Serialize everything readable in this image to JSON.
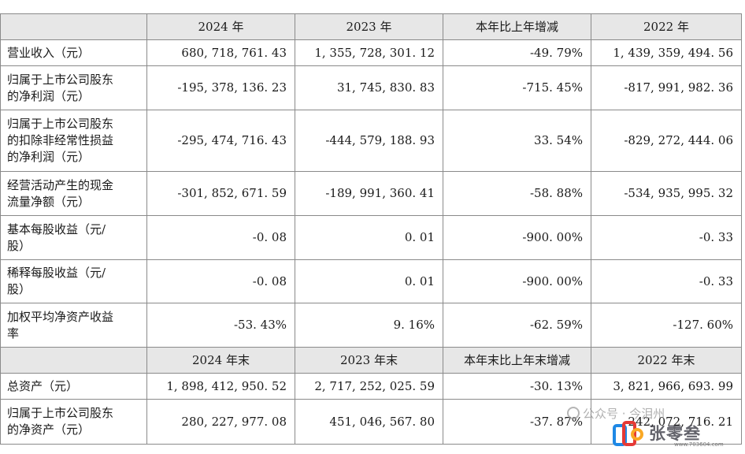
{
  "header1": [
    "",
    "2024 年",
    "2023 年",
    "本年比上年增减",
    "2022 年"
  ],
  "rows1": [
    {
      "label": [
        "营业收入（元）"
      ],
      "values": [
        "680, 718, 761. 43",
        "1, 355, 728, 301. 12",
        "-49. 79%",
        "1, 439, 359, 494. 56"
      ]
    },
    {
      "label": [
        "归属于上市公司股东",
        "的净利润（元）"
      ],
      "values": [
        "-195, 378, 136. 23",
        "31, 745, 830. 83",
        "-715. 45%",
        "-817, 991, 982. 36"
      ]
    },
    {
      "label": [
        "归属于上市公司股东",
        "的扣除非经常性损益",
        "的净利润（元）"
      ],
      "values": [
        "-295, 474, 716. 43",
        "-444, 579, 188. 93",
        "33. 54%",
        "-829, 272, 444. 06"
      ]
    },
    {
      "label": [
        "经营活动产生的现金",
        "流量净额（元）"
      ],
      "values": [
        "-301, 852, 671. 59",
        "-189, 991, 360. 41",
        "-58. 88%",
        "-534, 935, 995. 32"
      ]
    },
    {
      "label": [
        "基本每股收益（元/",
        "股）"
      ],
      "values": [
        "-0. 08",
        "0. 01",
        "-900. 00%",
        "-0. 33"
      ]
    },
    {
      "label": [
        "稀释每股收益（元/",
        "股）"
      ],
      "values": [
        "-0. 08",
        "0. 01",
        "-900. 00%",
        "-0. 33"
      ]
    },
    {
      "label": [
        "加权平均净资产收益",
        "率"
      ],
      "values": [
        "-53. 43%",
        "9. 16%",
        "-62. 59%",
        "-127. 60%"
      ]
    }
  ],
  "header2": [
    "",
    "2024 年末",
    "2023 年末",
    "本年末比上年末增减",
    "2022 年末"
  ],
  "rows2": [
    {
      "label": [
        "总资产（元）"
      ],
      "values": [
        "1, 898, 412, 950. 52",
        "2, 717, 252, 025. 59",
        "-30. 13%",
        "3, 821, 966, 693. 99"
      ]
    },
    {
      "label": [
        "归属于上市公司股东",
        "的净资产（元）"
      ],
      "values": [
        "280, 227, 977. 08",
        "451, 046, 567. 80",
        "-37. 87%",
        "242, 072, 716. 21"
      ]
    }
  ],
  "watermark": {
    "text": "公众号 · 今泪州",
    "brand": "张零叁",
    "url": "www.703604.com",
    "logo_colors": [
      "#1e88e5",
      "#e53935",
      "#f9a825"
    ]
  }
}
